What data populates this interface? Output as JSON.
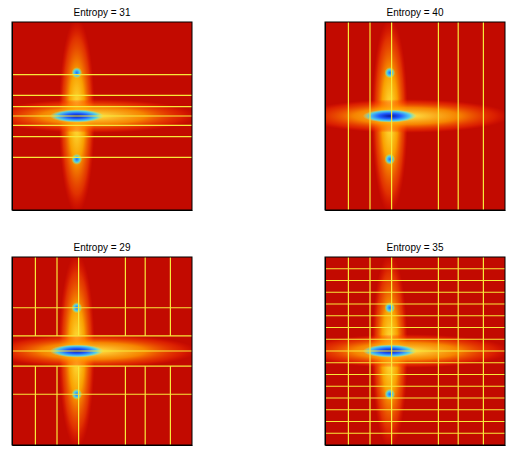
{
  "chart_data": [
    {
      "type": "partition",
      "title": "Entropy = 31",
      "xlim": [
        0,
        1
      ],
      "ylim": [
        0,
        1
      ],
      "tick_labels": false,
      "color": "#f7e83a",
      "hlines": [
        {
          "at": 0.28,
          "from": 0,
          "to": 1
        },
        {
          "at": 0.39,
          "from": 0,
          "to": 1
        },
        {
          "at": 0.45,
          "from": 0,
          "to": 1
        },
        {
          "at": 0.5,
          "from": 0,
          "to": 1
        },
        {
          "at": 0.55,
          "from": 0,
          "to": 1
        },
        {
          "at": 0.61,
          "from": 0,
          "to": 1
        },
        {
          "at": 0.72,
          "from": 0,
          "to": 1
        }
      ],
      "vlines": []
    },
    {
      "type": "partition",
      "title": "Entropy = 40",
      "xlim": [
        0,
        1
      ],
      "ylim": [
        0,
        1
      ],
      "tick_labels": false,
      "color": "#f7e83a",
      "hlines": [],
      "vlines": [
        {
          "at": 0.13,
          "from": 0,
          "to": 1
        },
        {
          "at": 0.25,
          "from": 0,
          "to": 1
        },
        {
          "at": 0.37,
          "from": 0,
          "to": 1
        },
        {
          "at": 0.63,
          "from": 0,
          "to": 1
        },
        {
          "at": 0.74,
          "from": 0,
          "to": 1
        },
        {
          "at": 0.88,
          "from": 0,
          "to": 1
        }
      ]
    },
    {
      "type": "partition",
      "title": "Entropy = 29",
      "xlim": [
        0,
        1
      ],
      "ylim": [
        0,
        1
      ],
      "tick_labels": false,
      "color": "#f7e83a",
      "hlines": [
        {
          "at": 0.27,
          "from": 0,
          "to": 1
        },
        {
          "at": 0.42,
          "from": 0,
          "to": 1
        },
        {
          "at": 0.5,
          "from": 0,
          "to": 1
        },
        {
          "at": 0.58,
          "from": 0,
          "to": 1
        },
        {
          "at": 0.73,
          "from": 0,
          "to": 1
        }
      ],
      "vlines": [
        {
          "at": 0.13,
          "from": 0,
          "to": 0.42
        },
        {
          "at": 0.25,
          "from": 0,
          "to": 0.42
        },
        {
          "at": 0.37,
          "from": 0,
          "to": 0.42
        },
        {
          "at": 0.63,
          "from": 0,
          "to": 0.42
        },
        {
          "at": 0.74,
          "from": 0,
          "to": 0.42
        },
        {
          "at": 0.88,
          "from": 0,
          "to": 0.42
        },
        {
          "at": 0.13,
          "from": 0.58,
          "to": 1
        },
        {
          "at": 0.25,
          "from": 0.58,
          "to": 1
        },
        {
          "at": 0.37,
          "from": 0.58,
          "to": 1
        },
        {
          "at": 0.63,
          "from": 0.58,
          "to": 1
        },
        {
          "at": 0.74,
          "from": 0.58,
          "to": 1
        },
        {
          "at": 0.88,
          "from": 0.58,
          "to": 1
        }
      ]
    },
    {
      "type": "partition",
      "title": "Entropy = 35",
      "xlim": [
        0,
        1
      ],
      "ylim": [
        0,
        1
      ],
      "tick_labels": false,
      "color": "#f7e83a",
      "hlines": [
        {
          "at": 0.0625,
          "from": 0,
          "to": 1
        },
        {
          "at": 0.125,
          "from": 0,
          "to": 1
        },
        {
          "at": 0.1875,
          "from": 0,
          "to": 1
        },
        {
          "at": 0.25,
          "from": 0,
          "to": 1
        },
        {
          "at": 0.3125,
          "from": 0,
          "to": 1
        },
        {
          "at": 0.375,
          "from": 0,
          "to": 1
        },
        {
          "at": 0.4375,
          "from": 0,
          "to": 1
        },
        {
          "at": 0.5,
          "from": 0,
          "to": 1
        },
        {
          "at": 0.5625,
          "from": 0,
          "to": 1
        },
        {
          "at": 0.625,
          "from": 0,
          "to": 1
        },
        {
          "at": 0.6875,
          "from": 0,
          "to": 1
        },
        {
          "at": 0.75,
          "from": 0,
          "to": 1
        },
        {
          "at": 0.8125,
          "from": 0,
          "to": 1
        },
        {
          "at": 0.875,
          "from": 0,
          "to": 1
        },
        {
          "at": 0.9375,
          "from": 0,
          "to": 1
        }
      ],
      "vlines": [
        {
          "at": 0.13,
          "from": 0,
          "to": 1
        },
        {
          "at": 0.25,
          "from": 0,
          "to": 1
        },
        {
          "at": 0.37,
          "from": 0,
          "to": 1
        },
        {
          "at": 0.63,
          "from": 0,
          "to": 1
        },
        {
          "at": 0.74,
          "from": 0,
          "to": 1
        },
        {
          "at": 0.88,
          "from": 0,
          "to": 1
        }
      ]
    }
  ]
}
